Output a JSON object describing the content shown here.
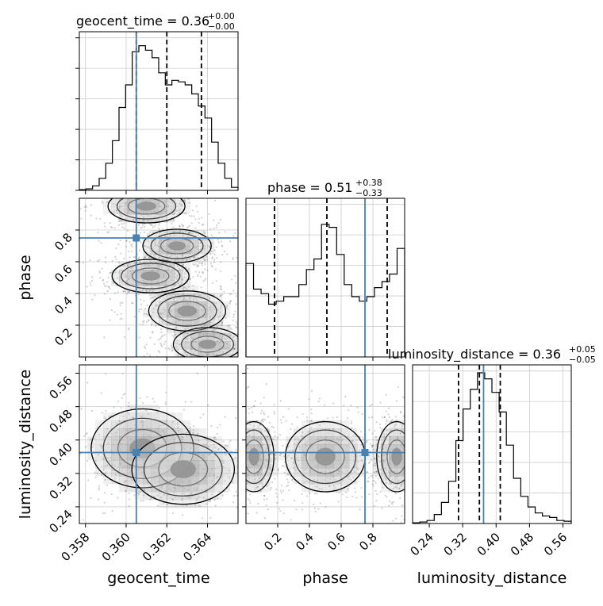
{
  "chart_data": {
    "type": "corner",
    "parameters": [
      "geocent_time",
      "phase",
      "luminosity_distance"
    ],
    "truths": {
      "geocent_time": 0.3605,
      "phase": 0.75,
      "luminosity_distance": 0.37
    },
    "axis_ranges": {
      "geocent_time": [
        0.3577,
        0.3655
      ],
      "phase": [
        0.0,
        1.0
      ],
      "luminosity_distance": [
        0.2,
        0.58
      ]
    },
    "ticks": {
      "geocent_time": {
        "values": [
          0.358,
          0.36,
          0.362,
          0.364
        ],
        "labels": [
          "0.358",
          "0.360",
          "0.362",
          "0.364"
        ]
      },
      "phase": {
        "values": [
          0.2,
          0.4,
          0.6,
          0.8
        ],
        "labels": [
          "0.2",
          "0.4",
          "0.6",
          "0.8"
        ]
      },
      "luminosity_distance": {
        "values": [
          0.24,
          0.32,
          0.4,
          0.48,
          0.56
        ],
        "labels": [
          "0.24",
          "0.32",
          "0.40",
          "0.48",
          "0.56"
        ]
      }
    },
    "grid": true,
    "titles": [
      {
        "param": "geocent_time",
        "prefix": "geocent_time = 0.36",
        "plus": "+0.00",
        "minus": "−0.00"
      },
      {
        "param": "phase",
        "prefix": "phase = 0.51",
        "plus": "+0.38",
        "minus": "−0.33"
      },
      {
        "param": "luminosity_distance",
        "prefix": "luminosity_distance = 0.36",
        "plus": "+0.05",
        "minus": "−0.05"
      }
    ],
    "quantiles": {
      "geocent_time": [
        0.3605,
        0.362,
        0.3637
      ],
      "phase": [
        0.18,
        0.51,
        0.89
      ],
      "luminosity_distance": [
        0.31,
        0.36,
        0.41
      ]
    },
    "histograms": {
      "geocent_time": {
        "range": [
          0.3577,
          0.3655
        ],
        "counts": [
          0.005,
          0.01,
          0.03,
          0.08,
          0.18,
          0.33,
          0.55,
          0.7,
          0.92,
          0.96,
          0.93,
          0.88,
          0.78,
          0.7,
          0.73,
          0.72,
          0.7,
          0.64,
          0.56,
          0.48,
          0.32,
          0.18,
          0.08,
          0.02
        ]
      },
      "phase": {
        "range": [
          0.0,
          1.0
        ],
        "counts": [
          0.62,
          0.45,
          0.42,
          0.35,
          0.37,
          0.4,
          0.4,
          0.48,
          0.58,
          0.65,
          0.88,
          0.86,
          0.68,
          0.48,
          0.4,
          0.37,
          0.4,
          0.46,
          0.5,
          0.55,
          0.72
        ]
      },
      "luminosity_distance": {
        "range": [
          0.2,
          0.58
        ],
        "counts": [
          0.005,
          0.01,
          0.02,
          0.06,
          0.14,
          0.28,
          0.55,
          0.76,
          0.89,
          1.0,
          0.96,
          0.87,
          0.74,
          0.52,
          0.3,
          0.18,
          0.11,
          0.07,
          0.05,
          0.04,
          0.02,
          0.015
        ]
      }
    },
    "joint_clusters": {
      "phase_vs_geocent_time": [
        {
          "x": 0.3612,
          "y": 0.51,
          "sx": 0.0009,
          "sy": 0.05
        },
        {
          "x": 0.361,
          "y": 0.95,
          "sx": 0.0009,
          "sy": 0.05
        },
        {
          "x": 0.3625,
          "y": 0.7,
          "sx": 0.0008,
          "sy": 0.05
        },
        {
          "x": 0.363,
          "y": 0.29,
          "sx": 0.0009,
          "sy": 0.06
        },
        {
          "x": 0.364,
          "y": 0.08,
          "sx": 0.0008,
          "sy": 0.05
        }
      ],
      "luminosity_distance_vs_geocent_time": [
        {
          "x": 0.3608,
          "y": 0.38,
          "sx": 0.0012,
          "sy": 0.045
        },
        {
          "x": 0.3628,
          "y": 0.33,
          "sx": 0.0012,
          "sy": 0.04
        }
      ],
      "luminosity_distance_vs_phase": [
        {
          "x": 0.5,
          "y": 0.36,
          "sx": 0.12,
          "sy": 0.04
        },
        {
          "x": 0.05,
          "y": 0.36,
          "sx": 0.06,
          "sy": 0.04
        },
        {
          "x": 0.95,
          "y": 0.36,
          "sx": 0.06,
          "sy": 0.04
        }
      ]
    }
  }
}
